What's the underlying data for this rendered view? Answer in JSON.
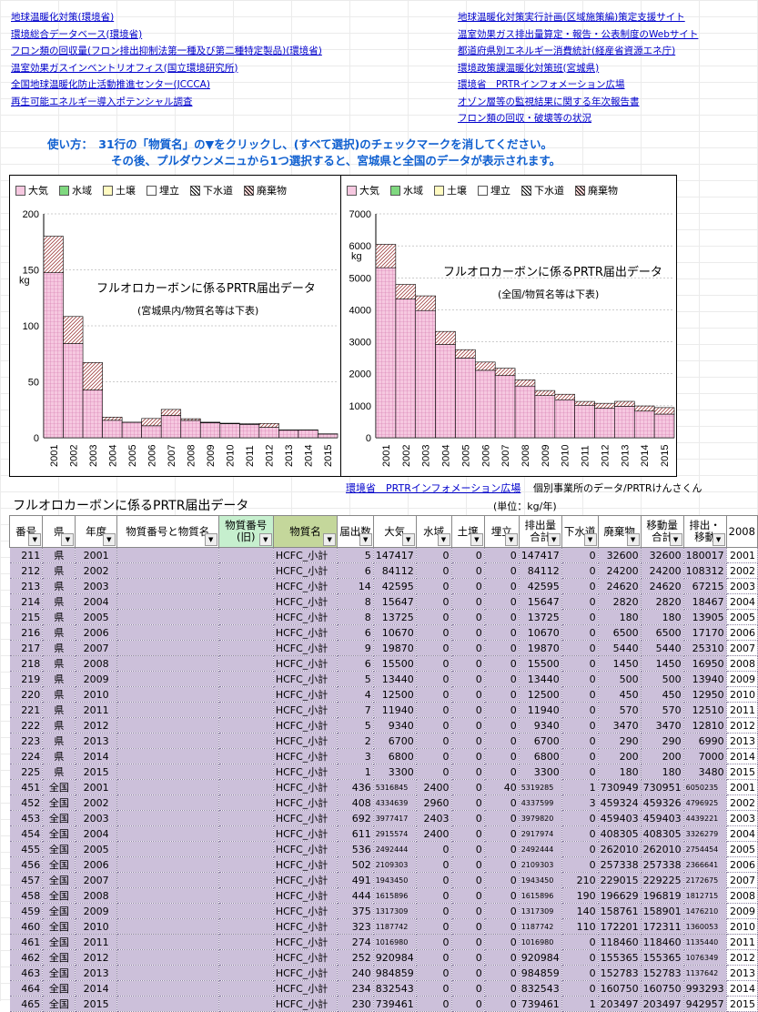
{
  "links_left": [
    "地球温暖化対策(環境省)",
    "環境総合データベース(環境省)",
    "フロン類の回収量(フロン排出抑制法第一種及び第二種特定製品)(環境省)",
    "温室効果ガスインベントリオフィス(国立環境研究所)",
    "全国地球温暖化防止活動推進センター(JCCCA)",
    "再生可能エネルギー導入ポテンシャル調査"
  ],
  "links_right": [
    "地球温暖化対策実行計画(区域施策編)策定支援サイト",
    "温室効果ガス排出量算定・報告・公表制度のWebサイト",
    "都道府県別エネルギー消費統計(経産省資源エネ庁)",
    "環境政策課温暖化対策班(宮城県)",
    "環境省　PRTRインフォメーション広場",
    "オゾン層等の監視結果に関する年次報告書",
    "フロン類の回収・破壊等の状況"
  ],
  "instructions": {
    "line1": "使い方：　31行の「物質名」の▼をクリックし、(すべて選択)のチェックマークを消してください。",
    "line2": "その後、プルダウンメニュから1つ選択すると、宮城県と全国のデータが表示されます。"
  },
  "legend": [
    "大気",
    "水域",
    "土壌",
    "埋立",
    "下水道",
    "廃棄物"
  ],
  "colors": {
    "pink": "#f6c8e0",
    "water": "#7fd87f",
    "soil": "#fffac0",
    "landfill": "#ffffff",
    "link": "#0000cc",
    "instr": "#1060d0",
    "row": "#ccc0da"
  },
  "chart_data": [
    {
      "type": "bar",
      "title": "フルオロカーボンに係るPRTR届出データ",
      "subtitle": "(宮城県内/物質名等は下表)",
      "ylabel": "kg",
      "ylim": [
        0,
        200
      ],
      "yticks": [
        0,
        50,
        100,
        150,
        200
      ],
      "categories": [
        "2001",
        "2002",
        "2003",
        "2004",
        "2005",
        "2006",
        "2007",
        "2008",
        "2009",
        "2010",
        "2011",
        "2012",
        "2013",
        "2014",
        "2015"
      ],
      "series": [
        {
          "name": "大気",
          "values": [
            147.4,
            84.1,
            42.6,
            15.6,
            13.7,
            10.7,
            19.9,
            15.5,
            13.4,
            12.5,
            11.9,
            9.3,
            6.7,
            6.8,
            3.3
          ]
        },
        {
          "name": "下水道",
          "values": [
            0,
            0,
            0,
            0,
            0,
            0,
            0,
            0,
            0,
            0,
            0,
            0,
            0,
            0,
            0
          ]
        },
        {
          "name": "廃棄物",
          "values": [
            32.6,
            24.2,
            24.6,
            2.8,
            0.2,
            6.5,
            5.4,
            1.5,
            0.5,
            0.5,
            0.6,
            3.5,
            0.3,
            0.2,
            0.2
          ]
        }
      ]
    },
    {
      "type": "bar",
      "title": "フルオロカーボンに係るPRTR届出データ",
      "subtitle": "(全国/物質名等は下表)",
      "ylabel": "kg",
      "ylim": [
        0,
        7000
      ],
      "yticks": [
        0,
        1000,
        2000,
        3000,
        4000,
        5000,
        6000,
        7000
      ],
      "categories": [
        "2001",
        "2002",
        "2003",
        "2004",
        "2005",
        "2006",
        "2007",
        "2008",
        "2009",
        "2010",
        "2011",
        "2012",
        "2013",
        "2014",
        "2015"
      ],
      "series": [
        {
          "name": "大気",
          "values": [
            5316.8,
            4334.6,
            3977.4,
            2915.6,
            2492.4,
            2109.3,
            1943.5,
            1616,
            1317.3,
            1187.7,
            1017,
            921,
            985,
            833,
            739
          ]
        },
        {
          "name": "下水道",
          "values": [
            0,
            0,
            0,
            0,
            0,
            0,
            0.2,
            0.2,
            0.1,
            0.1,
            0,
            0,
            0,
            0,
            0
          ]
        },
        {
          "name": "廃棄物",
          "values": [
            730.9,
            459.3,
            459.4,
            408.3,
            262,
            257.3,
            229,
            196.6,
            158.8,
            172.2,
            118.5,
            155.4,
            152.8,
            160.8,
            203.5
          ]
        }
      ]
    }
  ],
  "bottom_links": {
    "prtr": "環境省　PRTRインフォメーション広場",
    "note": "個別事業所のデータ/PRTRけんさくん"
  },
  "table": {
    "title": "フルオロカーボンに係るPRTR届出データ",
    "unit": "(単位：kg/年)",
    "headers": [
      "番号",
      "県",
      "年度",
      "物質番号と物質名",
      "物質番号\n(旧)",
      "物質名",
      "届出数",
      "大気",
      "水域",
      "土壌",
      "埋立",
      "排出量\n合計",
      "下水道",
      "廃棄物",
      "移動量\n合計",
      "排出・\n移動",
      "2008"
    ],
    "rows": [
      [
        "211",
        "県",
        "2001",
        "",
        "",
        "HCFC_小計",
        "5",
        "147417",
        "0",
        "0",
        "0",
        "147417",
        "0",
        "32600",
        "32600",
        "180017",
        "2001"
      ],
      [
        "212",
        "県",
        "2002",
        "",
        "",
        "HCFC_小計",
        "6",
        "84112",
        "0",
        "0",
        "0",
        "84112",
        "0",
        "24200",
        "24200",
        "108312",
        "2002"
      ],
      [
        "213",
        "県",
        "2003",
        "",
        "",
        "HCFC_小計",
        "14",
        "42595",
        "0",
        "0",
        "0",
        "42595",
        "0",
        "24620",
        "24620",
        "67215",
        "2003"
      ],
      [
        "214",
        "県",
        "2004",
        "",
        "",
        "HCFC_小計",
        "8",
        "15647",
        "0",
        "0",
        "0",
        "15647",
        "0",
        "2820",
        "2820",
        "18467",
        "2004"
      ],
      [
        "215",
        "県",
        "2005",
        "",
        "",
        "HCFC_小計",
        "8",
        "13725",
        "0",
        "0",
        "0",
        "13725",
        "0",
        "180",
        "180",
        "13905",
        "2005"
      ],
      [
        "216",
        "県",
        "2006",
        "",
        "",
        "HCFC_小計",
        "6",
        "10670",
        "0",
        "0",
        "0",
        "10670",
        "0",
        "6500",
        "6500",
        "17170",
        "2006"
      ],
      [
        "217",
        "県",
        "2007",
        "",
        "",
        "HCFC_小計",
        "9",
        "19870",
        "0",
        "0",
        "0",
        "19870",
        "0",
        "5440",
        "5440",
        "25310",
        "2007"
      ],
      [
        "218",
        "県",
        "2008",
        "",
        "",
        "HCFC_小計",
        "6",
        "15500",
        "0",
        "0",
        "0",
        "15500",
        "0",
        "1450",
        "1450",
        "16950",
        "2008"
      ],
      [
        "219",
        "県",
        "2009",
        "",
        "",
        "HCFC_小計",
        "5",
        "13440",
        "0",
        "0",
        "0",
        "13440",
        "0",
        "500",
        "500",
        "13940",
        "2009"
      ],
      [
        "220",
        "県",
        "2010",
        "",
        "",
        "HCFC_小計",
        "4",
        "12500",
        "0",
        "0",
        "0",
        "12500",
        "0",
        "450",
        "450",
        "12950",
        "2010"
      ],
      [
        "221",
        "県",
        "2011",
        "",
        "",
        "HCFC_小計",
        "7",
        "11940",
        "0",
        "0",
        "0",
        "11940",
        "0",
        "570",
        "570",
        "12510",
        "2011"
      ],
      [
        "222",
        "県",
        "2012",
        "",
        "",
        "HCFC_小計",
        "5",
        "9340",
        "0",
        "0",
        "0",
        "9340",
        "0",
        "3470",
        "3470",
        "12810",
        "2012"
      ],
      [
        "223",
        "県",
        "2013",
        "",
        "",
        "HCFC_小計",
        "2",
        "6700",
        "0",
        "0",
        "0",
        "6700",
        "0",
        "290",
        "290",
        "6990",
        "2013"
      ],
      [
        "224",
        "県",
        "2014",
        "",
        "",
        "HCFC_小計",
        "3",
        "6800",
        "0",
        "0",
        "0",
        "6800",
        "0",
        "200",
        "200",
        "7000",
        "2014"
      ],
      [
        "225",
        "県",
        "2015",
        "",
        "",
        "HCFC_小計",
        "1",
        "3300",
        "0",
        "0",
        "0",
        "3300",
        "0",
        "180",
        "180",
        "3480",
        "2015"
      ],
      [
        "451",
        "全国",
        "2001",
        "",
        "",
        "HCFC_小計",
        "436",
        "5316845",
        "2400",
        "0",
        "40",
        "5319285",
        "1",
        "730949",
        "730951",
        "6050235",
        "2001"
      ],
      [
        "452",
        "全国",
        "2002",
        "",
        "",
        "HCFC_小計",
        "408",
        "4334639",
        "2960",
        "0",
        "0",
        "4337599",
        "3",
        "459324",
        "459326",
        "4796925",
        "2002"
      ],
      [
        "453",
        "全国",
        "2003",
        "",
        "",
        "HCFC_小計",
        "692",
        "3977417",
        "2403",
        "0",
        "0",
        "3979820",
        "0",
        "459403",
        "459403",
        "4439221",
        "2003"
      ],
      [
        "454",
        "全国",
        "2004",
        "",
        "",
        "HCFC_小計",
        "611",
        "2915574",
        "2400",
        "0",
        "0",
        "2917974",
        "0",
        "408305",
        "408305",
        "3326279",
        "2004"
      ],
      [
        "455",
        "全国",
        "2005",
        "",
        "",
        "HCFC_小計",
        "536",
        "2492444",
        "0",
        "0",
        "0",
        "2492444",
        "0",
        "262010",
        "262010",
        "2754454",
        "2005"
      ],
      [
        "456",
        "全国",
        "2006",
        "",
        "",
        "HCFC_小計",
        "502",
        "2109303",
        "0",
        "0",
        "0",
        "2109303",
        "0",
        "257338",
        "257338",
        "2366641",
        "2006"
      ],
      [
        "457",
        "全国",
        "2007",
        "",
        "",
        "HCFC_小計",
        "491",
        "1943450",
        "0",
        "0",
        "0",
        "1943450",
        "210",
        "229015",
        "229225",
        "2172675",
        "2007"
      ],
      [
        "458",
        "全国",
        "2008",
        "",
        "",
        "HCFC_小計",
        "444",
        "1615896",
        "0",
        "0",
        "0",
        "1615896",
        "190",
        "196629",
        "196819",
        "1812715",
        "2008"
      ],
      [
        "459",
        "全国",
        "2009",
        "",
        "",
        "HCFC_小計",
        "375",
        "1317309",
        "0",
        "0",
        "0",
        "1317309",
        "140",
        "158761",
        "158901",
        "1476210",
        "2009"
      ],
      [
        "460",
        "全国",
        "2010",
        "",
        "",
        "HCFC_小計",
        "323",
        "1187742",
        "0",
        "0",
        "0",
        "1187742",
        "110",
        "172201",
        "172311",
        "1360053",
        "2010"
      ],
      [
        "461",
        "全国",
        "2011",
        "",
        "",
        "HCFC_小計",
        "274",
        "1016980",
        "0",
        "0",
        "0",
        "1016980",
        "0",
        "118460",
        "118460",
        "1135440",
        "2011"
      ],
      [
        "462",
        "全国",
        "2012",
        "",
        "",
        "HCFC_小計",
        "252",
        "920984",
        "0",
        "0",
        "0",
        "920984",
        "0",
        "155365",
        "155365",
        "1076349",
        "2012"
      ],
      [
        "463",
        "全国",
        "2013",
        "",
        "",
        "HCFC_小計",
        "240",
        "984859",
        "0",
        "0",
        "0",
        "984859",
        "0",
        "152783",
        "152783",
        "1137642",
        "2013"
      ],
      [
        "464",
        "全国",
        "2014",
        "",
        "",
        "HCFC_小計",
        "234",
        "832543",
        "0",
        "0",
        "0",
        "832543",
        "0",
        "160750",
        "160750",
        "993293",
        "2014"
      ],
      [
        "465",
        "全国",
        "2015",
        "",
        "",
        "HCFC_小計",
        "230",
        "739461",
        "0",
        "0",
        "0",
        "739461",
        "1",
        "203497",
        "203497",
        "942957",
        "2015"
      ]
    ]
  }
}
